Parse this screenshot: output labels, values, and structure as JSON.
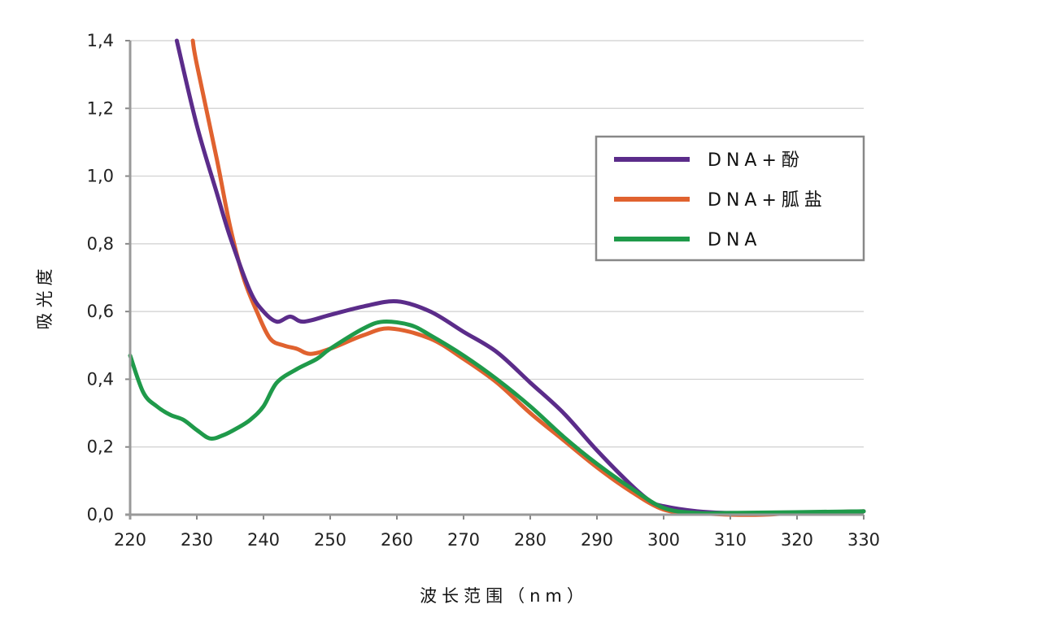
{
  "chart_data": {
    "type": "line",
    "title": "",
    "xlabel": "波长范围（nm）",
    "ylabel": "吸光度",
    "xlim": [
      220,
      330
    ],
    "ylim": [
      0,
      1.4
    ],
    "x_ticks": [
      "220",
      "230",
      "240",
      "250",
      "260",
      "270",
      "280",
      "290",
      "300",
      "310",
      "320",
      "330"
    ],
    "y_ticks": [
      "0,0",
      "0,2",
      "0,4",
      "0,6",
      "0,8",
      "1,0",
      "1,2",
      "1,4"
    ],
    "grid": "horizontal",
    "legend_position": "right",
    "series": [
      {
        "name": "DNA+酚",
        "color": "#5b2c8a",
        "points": [
          [
            227,
            1.4
          ],
          [
            230,
            1.15
          ],
          [
            233,
            0.95
          ],
          [
            235,
            0.82
          ],
          [
            238,
            0.66
          ],
          [
            240,
            0.6
          ],
          [
            242,
            0.57
          ],
          [
            244,
            0.585
          ],
          [
            246,
            0.57
          ],
          [
            250,
            0.59
          ],
          [
            255,
            0.615
          ],
          [
            260,
            0.63
          ],
          [
            265,
            0.6
          ],
          [
            270,
            0.54
          ],
          [
            275,
            0.48
          ],
          [
            280,
            0.39
          ],
          [
            285,
            0.3
          ],
          [
            290,
            0.19
          ],
          [
            295,
            0.09
          ],
          [
            298,
            0.04
          ],
          [
            300,
            0.025
          ],
          [
            305,
            0.01
          ],
          [
            310,
            0.005
          ],
          [
            320,
            0.005
          ],
          [
            330,
            0.01
          ]
        ]
      },
      {
        "name": "DNA+胍盐",
        "color": "#e0622f",
        "points": [
          [
            229.4,
            1.4
          ],
          [
            230,
            1.33
          ],
          [
            233,
            1.05
          ],
          [
            235,
            0.85
          ],
          [
            237,
            0.7
          ],
          [
            239,
            0.6
          ],
          [
            241,
            0.52
          ],
          [
            243,
            0.5
          ],
          [
            245,
            0.49
          ],
          [
            247,
            0.475
          ],
          [
            250,
            0.49
          ],
          [
            255,
            0.53
          ],
          [
            259,
            0.55
          ],
          [
            265,
            0.52
          ],
          [
            270,
            0.46
          ],
          [
            275,
            0.39
          ],
          [
            280,
            0.3
          ],
          [
            285,
            0.22
          ],
          [
            290,
            0.14
          ],
          [
            295,
            0.07
          ],
          [
            300,
            0.015
          ],
          [
            305,
            0.005
          ],
          [
            310,
            0.0
          ],
          [
            315,
            0.0
          ],
          [
            320,
            0.005
          ],
          [
            330,
            0.01
          ]
        ]
      },
      {
        "name": "DNA",
        "color": "#1f9a4a",
        "points": [
          [
            220,
            0.47
          ],
          [
            222,
            0.36
          ],
          [
            224,
            0.32
          ],
          [
            226,
            0.295
          ],
          [
            228,
            0.28
          ],
          [
            230,
            0.25
          ],
          [
            232,
            0.225
          ],
          [
            234,
            0.235
          ],
          [
            236,
            0.255
          ],
          [
            238,
            0.28
          ],
          [
            240,
            0.32
          ],
          [
            242,
            0.39
          ],
          [
            245,
            0.43
          ],
          [
            248,
            0.46
          ],
          [
            250,
            0.49
          ],
          [
            255,
            0.55
          ],
          [
            258,
            0.57
          ],
          [
            262,
            0.56
          ],
          [
            265,
            0.53
          ],
          [
            270,
            0.47
          ],
          [
            275,
            0.4
          ],
          [
            280,
            0.32
          ],
          [
            285,
            0.23
          ],
          [
            290,
            0.15
          ],
          [
            295,
            0.08
          ],
          [
            300,
            0.02
          ],
          [
            305,
            0.005
          ],
          [
            310,
            0.005
          ],
          [
            330,
            0.01
          ]
        ]
      }
    ]
  }
}
